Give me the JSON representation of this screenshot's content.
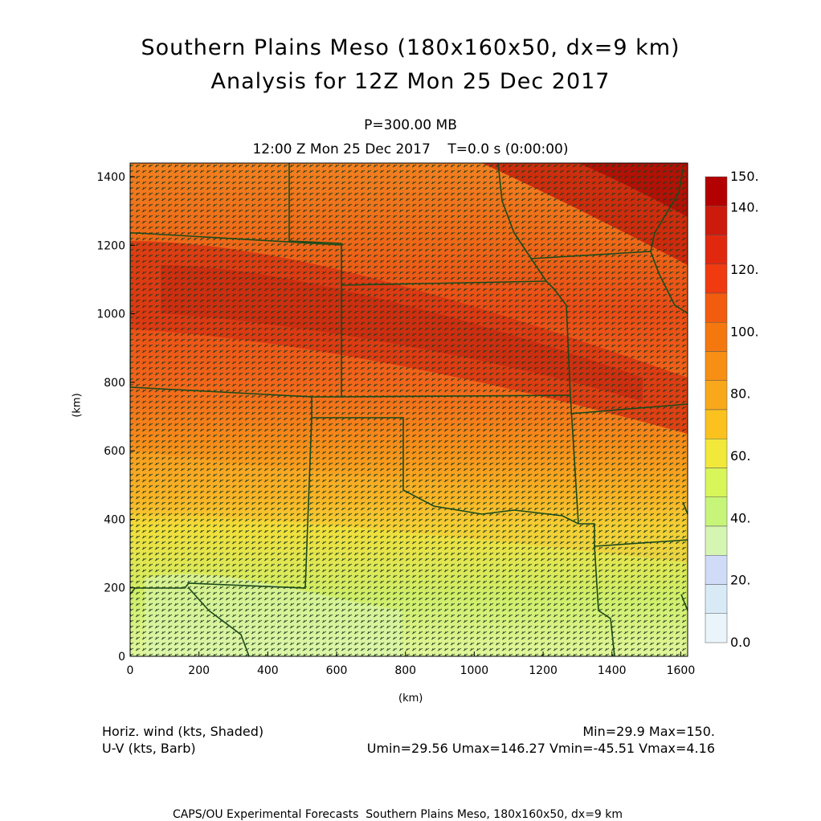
{
  "header": {
    "title_line1": "Southern Plains Meso (180x160x50, dx=9 km)",
    "title_line2": "Analysis for 12Z Mon 25 Dec 2017",
    "level": "P=300.00 MB",
    "time_line": "12:00 Z Mon 25 Dec 2017    T=0.0 s (0:00:00)"
  },
  "axes": {
    "x_label": "(km)",
    "y_label": "(km)",
    "x_ticks": [
      "0",
      "200",
      "400",
      "600",
      "800",
      "1000",
      "1200",
      "1400",
      "1600"
    ],
    "y_ticks": [
      "0",
      "200",
      "400",
      "600",
      "800",
      "1000",
      "1200",
      "1400"
    ],
    "x_range": [
      0,
      1620
    ],
    "y_range": [
      0,
      1440
    ]
  },
  "colorbar": {
    "labels": [
      "150.",
      "140.",
      "120.",
      "100.",
      "80.",
      "60.",
      "40.",
      "20.",
      "0.0"
    ],
    "colors": [
      "#b30000",
      "#cc1a0d",
      "#e0280f",
      "#f03a10",
      "#f25c0f",
      "#f5780f",
      "#f78f14",
      "#f9a81c",
      "#fbc11f",
      "#f2e83a",
      "#d8f55a",
      "#c6f57a",
      "#d5f5b3",
      "#d0dcf7",
      "#d9eaf7",
      "#eaf4fb"
    ]
  },
  "legend": {
    "field1": "Horiz. wind (kts, Shaded)",
    "field2": "U-V (kts, Barb)",
    "stats1": "Min=29.9 Max=150.",
    "stats2": "Umin=29.56 Umax=146.27 Vmin=-45.51 Vmax=4.16"
  },
  "footer": "CAPS/OU Experimental Forecasts  Southern Plains Meso, 180x160x50, dx=9 km"
}
